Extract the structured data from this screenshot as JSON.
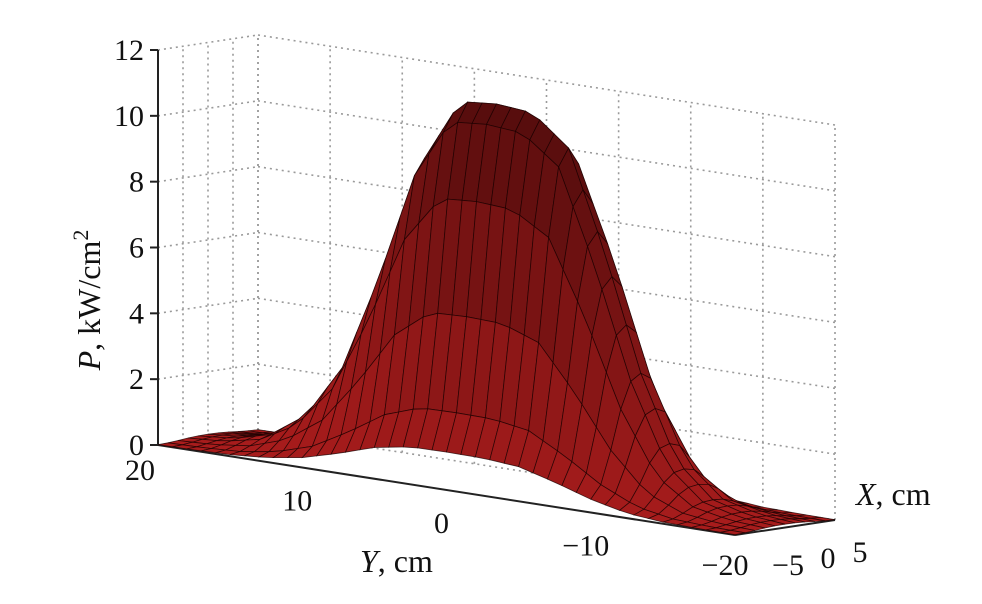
{
  "chart_data": {
    "type": "surface",
    "title": "",
    "zlabel_var": "P",
    "zlabel_unit": ", kW/cm",
    "zlabel_sup": "2",
    "ylabel_var": "Y",
    "ylabel_unit": ", cm",
    "xlabel_var": "X",
    "xlabel_unit": ", cm",
    "z_ticks": [
      "0",
      "2",
      "4",
      "6",
      "8",
      "10",
      "12"
    ],
    "y_ticks": [
      "20",
      "10",
      "0",
      "−10",
      "−20"
    ],
    "x_ticks": [
      "−5",
      "0",
      "5"
    ],
    "zlim": [
      0,
      12
    ],
    "ylim": [
      20,
      -20
    ],
    "xlim": [
      -5,
      5
    ],
    "peak_value": 11.5,
    "profile_y": {
      "y": [
        20,
        17.5,
        15,
        12.5,
        10,
        7.5,
        5,
        2.5,
        0,
        -2.5,
        -5,
        -7.5,
        -10,
        -12.5,
        -15,
        -17.5,
        -20
      ],
      "p_at_x0": [
        0.1,
        0.2,
        0.5,
        1.3,
        3.0,
        6.0,
        9.5,
        11.4,
        11.5,
        11.4,
        10.5,
        7.5,
        4.0,
        1.5,
        0.5,
        0.2,
        0.1
      ]
    },
    "profile_x": {
      "x": [
        -5,
        -4,
        -3,
        -2,
        -1,
        0,
        1,
        2,
        3,
        4,
        5
      ],
      "relative": [
        0.1,
        0.2,
        0.45,
        0.75,
        0.95,
        1.0,
        0.95,
        0.75,
        0.45,
        0.2,
        0.1
      ]
    },
    "grid": true,
    "colors": {
      "surface": "#a81c1c",
      "surface_dark": "#3a0808",
      "mesh": "#1a0000",
      "grid": "#9a9a9a"
    }
  }
}
